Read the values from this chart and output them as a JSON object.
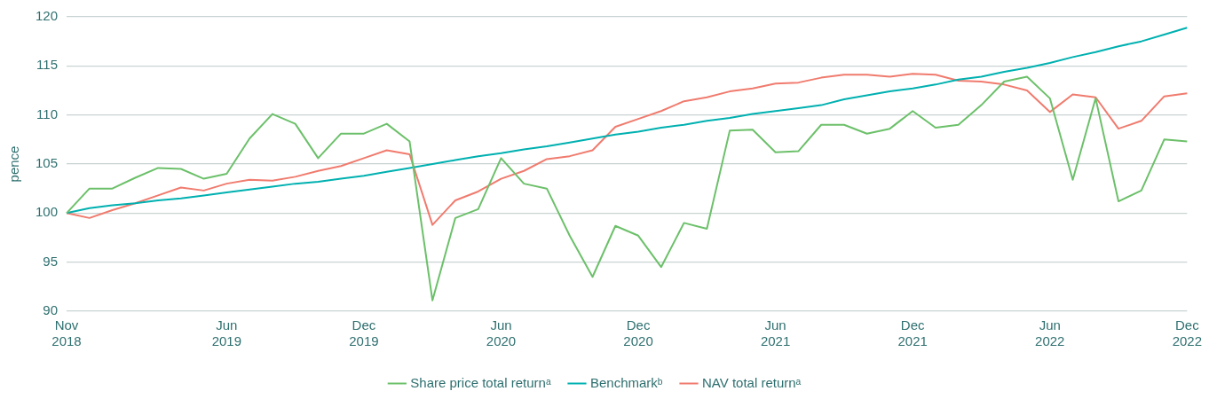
{
  "chart_data": {
    "type": "line",
    "ylabel": "pence",
    "categories": [
      "Nov 2018",
      null,
      null,
      null,
      null,
      null,
      null,
      "Jun 2019",
      null,
      null,
      null,
      null,
      null,
      "Dec 2019",
      null,
      null,
      null,
      null,
      null,
      "Jun 2020",
      null,
      null,
      null,
      null,
      null,
      "Dec 2020",
      null,
      null,
      null,
      null,
      null,
      "Jun 2021",
      null,
      null,
      null,
      null,
      null,
      "Dec 2021",
      null,
      null,
      null,
      null,
      null,
      "Jun 2022",
      null,
      null,
      null,
      null,
      null,
      "Dec 2022"
    ],
    "series": [
      {
        "name": "Share price total returnᵃ",
        "color": "#6cc06a",
        "values": [
          100,
          102.5,
          102.5,
          103.6,
          104.6,
          104.5,
          103.5,
          104.0,
          107.6,
          110.1,
          109.1,
          105.6,
          108.1,
          108.1,
          109.1,
          107.3,
          91.1,
          99.5,
          100.4,
          105.6,
          103.0,
          102.5,
          97.7,
          93.5,
          98.7,
          97.7,
          94.5,
          99.0,
          98.4,
          108.4,
          108.5,
          106.2,
          106.3,
          109.0,
          109.0,
          108.1,
          108.6,
          110.4,
          108.7,
          109.0,
          111.0,
          113.4,
          113.9,
          111.7,
          103.4,
          111.7,
          101.2,
          102.3,
          107.5,
          107.3
        ]
      },
      {
        "name": "Benchmarkᵇ",
        "color": "#00b0b0",
        "values": [
          100,
          100.5,
          100.8,
          101.0,
          101.3,
          101.5,
          101.8,
          102.1,
          102.4,
          102.7,
          103.0,
          103.2,
          103.5,
          103.8,
          104.2,
          104.6,
          105.0,
          105.4,
          105.8,
          106.1,
          106.5,
          106.8,
          107.2,
          107.6,
          108.0,
          108.3,
          108.7,
          109.0,
          109.4,
          109.7,
          110.1,
          110.4,
          110.7,
          111.0,
          111.6,
          112.0,
          112.4,
          112.7,
          113.1,
          113.6,
          113.9,
          114.4,
          114.8,
          115.3,
          115.9,
          116.4,
          117.0,
          117.5,
          118.2,
          118.9
        ]
      },
      {
        "name": "NAV total returnᵃ",
        "color": "#f07b6e",
        "values": [
          100,
          99.5,
          100.3,
          101.0,
          101.8,
          102.6,
          102.3,
          103.0,
          103.4,
          103.3,
          103.7,
          104.3,
          104.8,
          105.6,
          106.4,
          106.0,
          98.8,
          101.3,
          102.2,
          103.5,
          104.3,
          105.5,
          105.8,
          106.4,
          108.8,
          109.6,
          110.4,
          111.4,
          111.8,
          112.4,
          112.7,
          113.2,
          113.3,
          113.8,
          114.1,
          114.1,
          113.9,
          114.2,
          114.1,
          113.5,
          113.4,
          113.1,
          112.5,
          110.3,
          112.1,
          111.8,
          108.6,
          109.4,
          111.9,
          112.2
        ]
      }
    ],
    "ylim": [
      90,
      120
    ],
    "yticks": [
      90,
      95,
      100,
      105,
      110,
      115,
      120
    ],
    "grid": "y",
    "legend": "bottom",
    "marker": "none",
    "line_style": "solid"
  }
}
